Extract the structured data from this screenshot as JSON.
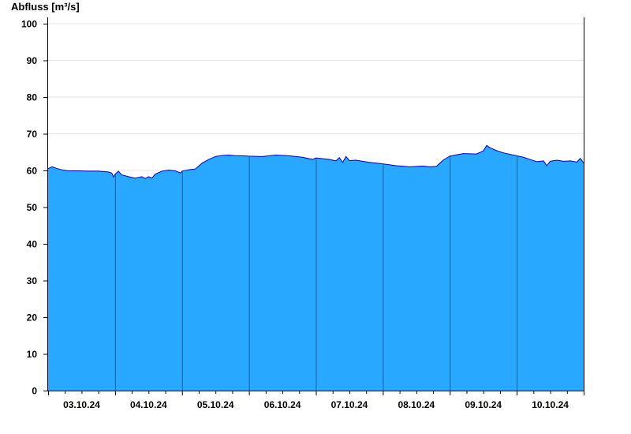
{
  "chart_data": {
    "type": "area",
    "ylabel": "Abfluss [m³/s]",
    "xlabel": "",
    "ylim": [
      0,
      100
    ],
    "yticks": [
      0,
      10,
      20,
      30,
      40,
      50,
      60,
      70,
      80,
      90,
      100
    ],
    "x_tick_labels": [
      "03.10.24",
      "04.10.24",
      "05.10.24",
      "06.10.24",
      "07.10.24",
      "08.10.24",
      "09.10.24",
      "10.10.24"
    ],
    "xlim_days": [
      0,
      8
    ],
    "grid": "horizontal",
    "colors": {
      "fill": "#29a8ff",
      "line": "#0000cc",
      "day_separator": "#1a5f99",
      "grid": "#e6e6e6"
    },
    "series": [
      {
        "x_days": [
          0.0,
          0.06,
          0.12,
          0.2,
          0.3,
          0.45,
          0.6,
          0.75,
          0.9,
          0.95,
          0.98,
          1.0,
          1.05,
          1.1,
          1.2,
          1.3,
          1.4,
          1.45,
          1.5,
          1.55,
          1.6,
          1.7,
          1.8,
          1.9,
          1.98,
          2.0,
          2.1,
          2.2,
          2.3,
          2.4,
          2.5,
          2.6,
          2.7,
          2.8,
          2.9,
          3.0,
          3.2,
          3.4,
          3.6,
          3.8,
          3.95,
          4.0,
          4.2,
          4.3,
          4.35,
          4.4,
          4.45,
          4.5,
          4.6,
          4.8,
          5.0,
          5.2,
          5.4,
          5.6,
          5.7,
          5.8,
          5.9,
          6.0,
          6.2,
          6.4,
          6.5,
          6.55,
          6.6,
          6.7,
          6.8,
          7.0,
          7.1,
          7.2,
          7.3,
          7.4,
          7.45,
          7.5,
          7.6,
          7.7,
          7.8,
          7.9,
          7.95,
          8.0
        ],
        "values": [
          60.5,
          61.0,
          60.6,
          60.2,
          59.9,
          59.9,
          59.8,
          59.8,
          59.6,
          59.3,
          58.2,
          59.0,
          59.8,
          58.8,
          58.3,
          57.9,
          58.3,
          57.8,
          58.3,
          57.9,
          59.0,
          59.8,
          60.1,
          59.9,
          59.3,
          59.8,
          60.2,
          60.4,
          62.0,
          63.0,
          63.8,
          64.1,
          64.2,
          64.0,
          64.0,
          63.9,
          63.8,
          64.2,
          64.0,
          63.6,
          63.0,
          63.4,
          63.0,
          62.6,
          63.5,
          62.2,
          63.8,
          62.7,
          62.8,
          62.2,
          61.8,
          61.3,
          61.0,
          61.2,
          61.0,
          61.1,
          62.8,
          63.9,
          64.6,
          64.5,
          65.3,
          66.8,
          66.2,
          65.4,
          64.8,
          64.0,
          63.6,
          63.0,
          62.4,
          62.6,
          61.3,
          62.5,
          62.8,
          62.5,
          62.6,
          62.3,
          63.3,
          62.0
        ]
      }
    ]
  }
}
